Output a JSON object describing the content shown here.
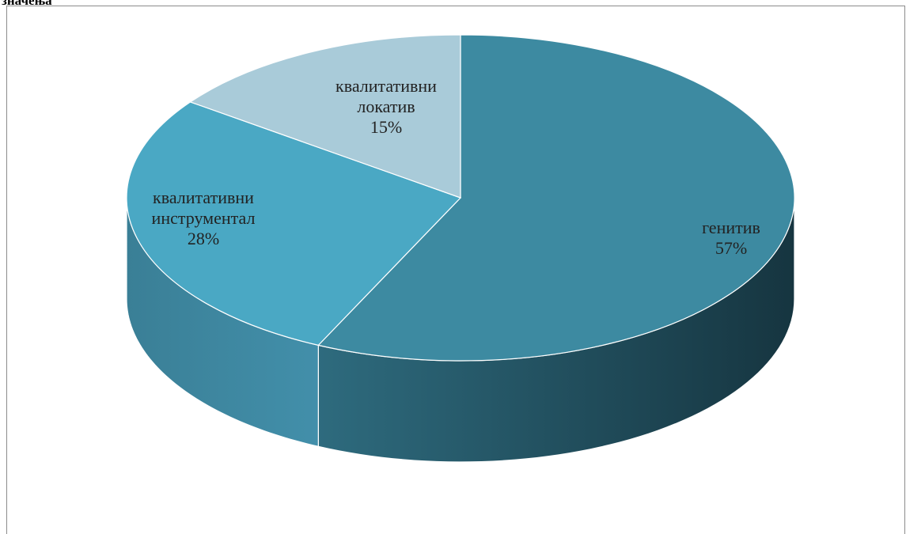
{
  "page": {
    "caption": "значења"
  },
  "chart_data": {
    "type": "pie",
    "style": "3d",
    "start_angle_deg": 90,
    "direction": "clockwise",
    "slices": [
      {
        "label_lines": [
          "генитив"
        ],
        "percent_text": "57%",
        "value": 57,
        "top_color": "#3d8aa1",
        "side_color_light": "#2e6b7e",
        "side_color_dark": "#163540"
      },
      {
        "label_lines": [
          "квалитативни",
          "инструментал"
        ],
        "percent_text": "28%",
        "value": 28,
        "top_color": "#4aa8c4",
        "side_color_light": "#3a7f96",
        "side_color_dark": "#428faa"
      },
      {
        "label_lines": [
          "квалитативни",
          "локатив"
        ],
        "percent_text": "15%",
        "value": 15,
        "top_color": "#a9cbd9",
        "side_color_light": "#8fb3c2",
        "side_color_dark": "#7da1b0"
      }
    ],
    "legend": "none",
    "data_labels": "inside"
  }
}
